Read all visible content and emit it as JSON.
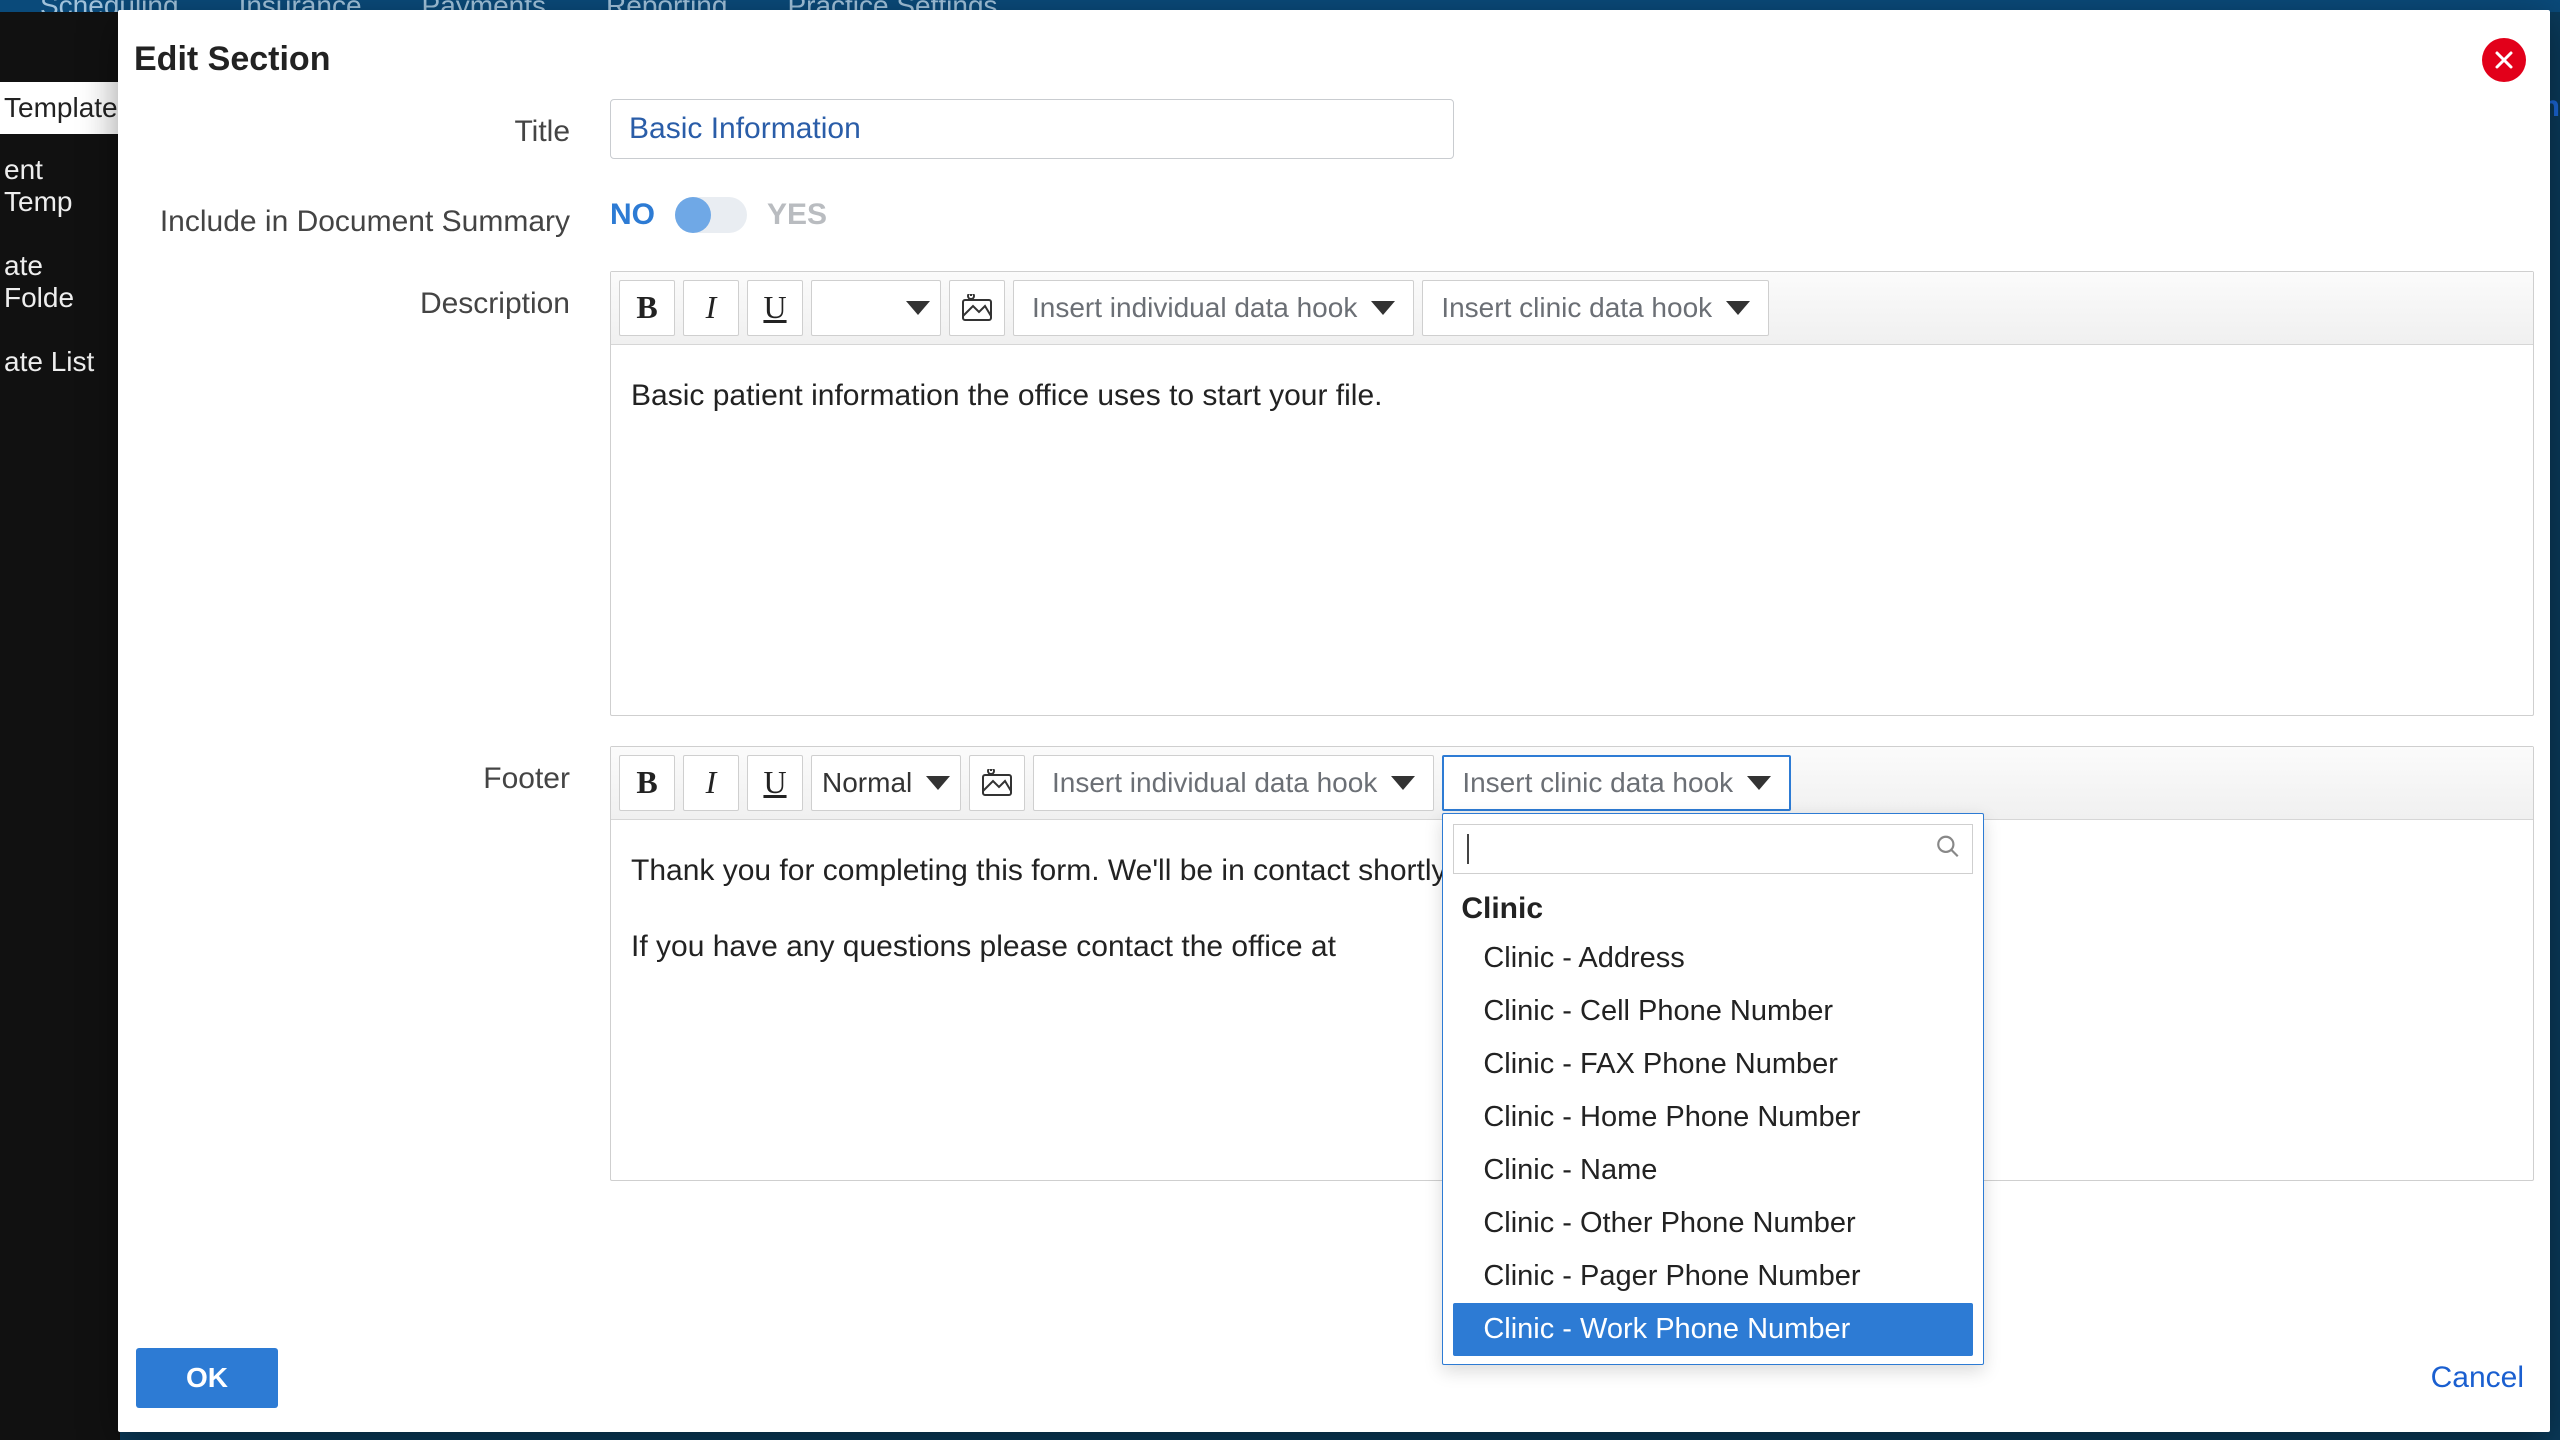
{
  "colors": {
    "accent": "#2d7bd4",
    "danger": "#e2001a",
    "muted": "#6b6f75"
  },
  "background": {
    "topnav": [
      "Scheduling",
      "Insurance",
      "Payments",
      "Reporting",
      "Practice Settings"
    ],
    "sidebar_active": "Templates",
    "sidebar_items": [
      "ent Temp",
      "ate Folde",
      "ate List"
    ],
    "right_link": "ck to Ten"
  },
  "modal": {
    "title": "Edit Section",
    "fields": {
      "title_label": "Title",
      "title_value": "Basic Information",
      "include_label": "Include in Document Summary",
      "include_no": "NO",
      "include_yes": "YES",
      "include_value": false,
      "description_label": "Description",
      "footer_label": "Footer"
    },
    "editor": {
      "format_normal": "Normal",
      "hook_individual": "Insert individual data hook",
      "hook_clinic": "Insert clinic data hook"
    },
    "description_text": "Basic patient information the office uses to start your file.",
    "footer_text_1": "Thank you for completing this form. We'll be in contact shortly.",
    "footer_text_2": "If you have any questions please contact the office at",
    "buttons": {
      "ok": "OK",
      "cancel": "Cancel"
    }
  },
  "dropdown": {
    "search_value": "",
    "group": "Clinic",
    "options": [
      "Clinic - Address",
      "Clinic - Cell Phone Number",
      "Clinic - FAX Phone Number",
      "Clinic - Home Phone Number",
      "Clinic - Name",
      "Clinic - Other Phone Number",
      "Clinic - Pager Phone Number",
      "Clinic - Work Phone Number"
    ],
    "highlighted_index": 7
  }
}
